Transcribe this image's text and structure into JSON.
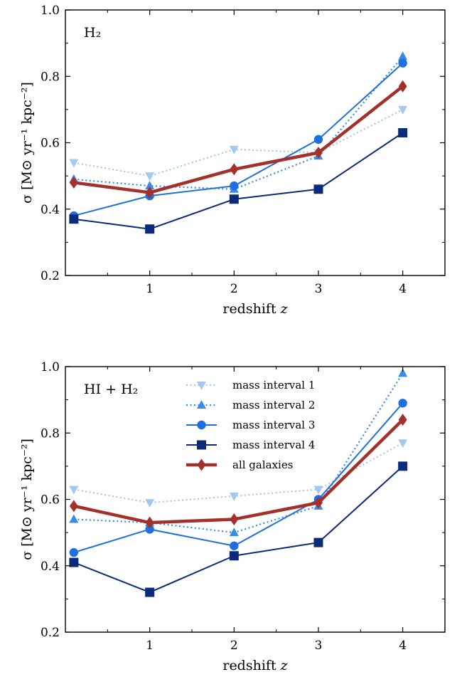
{
  "chart_data": [
    {
      "type": "line",
      "panel_label": "H₂",
      "xlabel": "redshift",
      "xlabel_var": "z",
      "ylabel": "σ [M⊙ yr⁻¹ kpc⁻²]",
      "xlim": [
        0,
        4.5
      ],
      "ylim": [
        0.2,
        1.0
      ],
      "xticks": [
        1,
        2,
        3,
        4
      ],
      "yticks": [
        0.2,
        0.4,
        0.6,
        0.8,
        1.0
      ],
      "legend": false,
      "x": [
        0.1,
        1,
        2,
        3,
        4
      ],
      "series": [
        {
          "name": "mass interval 1",
          "values": [
            0.54,
            0.5,
            0.58,
            0.57,
            0.7
          ],
          "color": "#a6c8f0",
          "style": "dotted",
          "marker": "triangle-down"
        },
        {
          "name": "mass interval 2",
          "values": [
            0.49,
            0.47,
            0.46,
            0.56,
            0.86
          ],
          "color": "#3a8ae8",
          "style": "dotted",
          "marker": "triangle-up"
        },
        {
          "name": "mass interval 3",
          "values": [
            0.38,
            0.44,
            0.47,
            0.61,
            0.84
          ],
          "color": "#1f6fe0",
          "style": "solid",
          "marker": "circle"
        },
        {
          "name": "mass interval 4",
          "values": [
            0.37,
            0.34,
            0.43,
            0.46,
            0.63
          ],
          "color": "#0b2a7a",
          "style": "solid",
          "marker": "square"
        },
        {
          "name": "all galaxies",
          "values": [
            0.48,
            0.45,
            0.52,
            0.57,
            0.77
          ],
          "color": "#a3302a",
          "style": "thick",
          "marker": "diamond"
        }
      ]
    },
    {
      "type": "line",
      "panel_label": "HI + H₂",
      "xlabel": "redshift",
      "xlabel_var": "z",
      "ylabel": "σ [M⊙ yr⁻¹ kpc⁻²]",
      "xlim": [
        0,
        4.5
      ],
      "ylim": [
        0.2,
        1.0
      ],
      "xticks": [
        1,
        2,
        3,
        4
      ],
      "yticks": [
        0.2,
        0.4,
        0.6,
        0.8,
        1.0
      ],
      "legend": true,
      "legend_position": "top-center",
      "x": [
        0.1,
        1,
        2,
        3,
        4
      ],
      "series": [
        {
          "name": "mass interval 1",
          "values": [
            0.63,
            0.59,
            0.61,
            0.63,
            0.77
          ],
          "color": "#a6c8f0",
          "style": "dotted",
          "marker": "triangle-down"
        },
        {
          "name": "mass interval 2",
          "values": [
            0.54,
            0.53,
            0.5,
            0.58,
            0.98
          ],
          "color": "#3a8ae8",
          "style": "dotted",
          "marker": "triangle-up"
        },
        {
          "name": "mass interval 3",
          "values": [
            0.44,
            0.51,
            0.46,
            0.6,
            0.89
          ],
          "color": "#1f6fe0",
          "style": "solid",
          "marker": "circle"
        },
        {
          "name": "mass interval 4",
          "values": [
            0.41,
            0.32,
            0.43,
            0.47,
            0.7
          ],
          "color": "#0b2a7a",
          "style": "solid",
          "marker": "square"
        },
        {
          "name": "all galaxies",
          "values": [
            0.58,
            0.53,
            0.54,
            0.59,
            0.84
          ],
          "color": "#a3302a",
          "style": "thick",
          "marker": "diamond"
        }
      ]
    }
  ]
}
